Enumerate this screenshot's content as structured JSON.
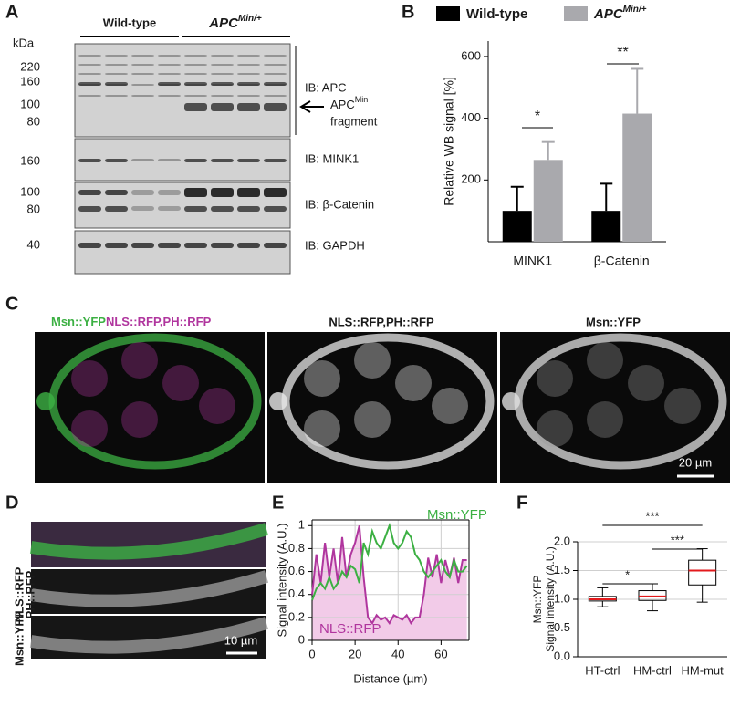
{
  "figure": {
    "panel_labels": [
      "A",
      "B",
      "C",
      "D",
      "E",
      "F"
    ],
    "blot": {
      "unit": "kDa",
      "groups": [
        "Wild-type",
        "APC"
      ],
      "group_superscript": "Min/+",
      "apc_markers": [
        220,
        160,
        100,
        80
      ],
      "mink1_markers": [
        160
      ],
      "catenin_markers": [
        100,
        80
      ],
      "gapdh_markers": [
        40
      ],
      "labels": [
        "IB: APC",
        "IB: MINK1",
        "IB: β-Catenin",
        "IB: GAPDH"
      ],
      "fragment": {
        "name": "APC",
        "superscript": "Min",
        "text": "fragment"
      }
    },
    "micro": {
      "merge_green": "Msn::YFP",
      "merge_magenta": "NLS::RFP,PH::RFP",
      "title_red": "NLS::RFP,PH::RFP",
      "title_green": "Msn::YFP",
      "scale_c": "20 µm",
      "strip_labels": [
        "NLS::RFP",
        "PH::RFP",
        "Msn::YFP"
      ],
      "scale_d": "10 µm"
    }
  },
  "chart_data": [
    {
      "type": "bar",
      "categories": [
        "MINK1",
        "β-Catenin"
      ],
      "series": [
        {
          "name": "Wild-type",
          "color": "#000000",
          "values": [
            100,
            100
          ],
          "errors": [
            78,
            88
          ]
        },
        {
          "name": "APC",
          "name_superscript": "Min/+",
          "color": "#a9a9ad",
          "values": [
            265,
            415
          ],
          "errors": [
            58,
            145
          ]
        }
      ],
      "ylabel": "Relative WB signal [%]",
      "ylim": [
        0,
        650
      ],
      "yticks": [
        200,
        400,
        600
      ],
      "annotations": [
        "*",
        "**"
      ]
    },
    {
      "type": "line",
      "x": [
        0,
        2,
        4,
        6,
        8,
        10,
        12,
        14,
        16,
        18,
        20,
        22,
        24,
        26,
        28,
        30,
        32,
        34,
        36,
        38,
        40,
        42,
        44,
        46,
        48,
        50,
        52,
        54,
        56,
        58,
        60,
        62,
        64,
        66,
        68,
        70,
        72
      ],
      "series": [
        {
          "name": "Msn::YFP",
          "color": "#3cb043",
          "values": [
            0.35,
            0.45,
            0.5,
            0.45,
            0.55,
            0.45,
            0.5,
            0.6,
            0.55,
            0.65,
            0.62,
            0.5,
            0.85,
            0.75,
            0.95,
            0.85,
            0.8,
            0.9,
            1.0,
            0.85,
            0.8,
            0.85,
            0.95,
            0.9,
            0.75,
            0.7,
            0.6,
            0.55,
            0.6,
            0.65,
            0.7,
            0.6,
            0.55,
            0.7,
            0.6,
            0.6,
            0.65
          ]
        },
        {
          "name": "NLS::RFP",
          "color": "#b0369e",
          "fill": "#f2cbe8",
          "values": [
            0.4,
            0.75,
            0.5,
            0.85,
            0.55,
            0.8,
            0.5,
            0.9,
            0.55,
            0.75,
            0.85,
            1.0,
            0.55,
            0.2,
            0.15,
            0.22,
            0.18,
            0.2,
            0.15,
            0.22,
            0.2,
            0.18,
            0.22,
            0.15,
            0.2,
            0.2,
            0.4,
            0.72,
            0.55,
            0.75,
            0.5,
            0.7,
            0.55,
            0.72,
            0.5,
            0.7,
            0.7
          ]
        }
      ],
      "xlabel": "Distance (µm)",
      "ylabel": "Signal intensity (A.U.)",
      "xlim": [
        0,
        73
      ],
      "ylim": [
        0,
        1.05
      ],
      "xticks": [
        0,
        20,
        40,
        60
      ],
      "yticks": [
        0,
        0.2,
        0.4,
        0.6,
        0.8,
        1
      ],
      "grid": true
    },
    {
      "type": "box",
      "categories": [
        "HT-ctrl",
        "HM-ctrl",
        "HM-mut"
      ],
      "boxes": [
        {
          "min": 0.87,
          "q1": 0.97,
          "median": 1.0,
          "q3": 1.05,
          "max": 1.2
        },
        {
          "min": 0.8,
          "q1": 0.98,
          "median": 1.05,
          "q3": 1.15,
          "max": 1.27
        },
        {
          "min": 0.95,
          "q1": 1.25,
          "median": 1.5,
          "q3": 1.68,
          "max": 1.88
        }
      ],
      "color": "#e31a1c",
      "ylabel": [
        "Msn::YFP",
        "Signal intensity (A.U.)"
      ],
      "ylim": [
        0,
        2
      ],
      "yticks": [
        {
          "value": 0,
          "label": "0.0"
        },
        {
          "value": 0.5,
          "label": "0.5"
        },
        {
          "value": 1,
          "label": "1.0"
        },
        {
          "value": 1.5,
          "label": "1.5"
        },
        {
          "value": 2,
          "label": "2.0"
        }
      ],
      "grid": true,
      "annotations": [
        "*",
        "***",
        "***"
      ]
    }
  ]
}
